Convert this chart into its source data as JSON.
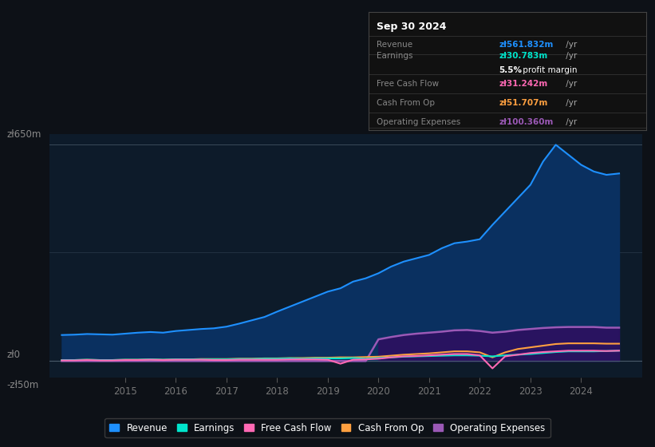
{
  "bg_color": "#0d1117",
  "plot_bg_color": "#0d1b2a",
  "title_date": "Sep 30 2024",
  "years": [
    2013.75,
    2014.0,
    2014.25,
    2014.5,
    2014.75,
    2015.0,
    2015.25,
    2015.5,
    2015.75,
    2016.0,
    2016.25,
    2016.5,
    2016.75,
    2017.0,
    2017.25,
    2017.5,
    2017.75,
    2018.0,
    2018.25,
    2018.5,
    2018.75,
    2019.0,
    2019.25,
    2019.5,
    2019.75,
    2020.0,
    2020.25,
    2020.5,
    2020.75,
    2021.0,
    2021.25,
    2021.5,
    2021.75,
    2022.0,
    2022.25,
    2022.5,
    2022.75,
    2023.0,
    2023.25,
    2023.5,
    2023.75,
    2024.0,
    2024.25,
    2024.5,
    2024.75
  ],
  "revenue": [
    78,
    79,
    81,
    80,
    79,
    82,
    85,
    87,
    85,
    90,
    93,
    96,
    98,
    103,
    112,
    122,
    132,
    148,
    163,
    178,
    193,
    208,
    218,
    238,
    248,
    263,
    283,
    298,
    308,
    318,
    338,
    353,
    358,
    365,
    408,
    448,
    488,
    528,
    598,
    648,
    618,
    588,
    568,
    558,
    562
  ],
  "earnings": [
    3,
    3,
    4,
    3,
    3,
    4,
    4,
    5,
    4,
    5,
    5,
    5,
    5,
    5,
    6,
    6,
    7,
    7,
    8,
    7,
    8,
    8,
    8,
    9,
    7,
    9,
    11,
    13,
    14,
    15,
    16,
    17,
    17,
    16,
    14,
    17,
    19,
    21,
    24,
    27,
    29,
    29,
    29,
    30,
    31
  ],
  "free_cash_flow": [
    2,
    2,
    3,
    2,
    2,
    3,
    3,
    4,
    3,
    4,
    4,
    4,
    3,
    3,
    4,
    4,
    4,
    4,
    5,
    5,
    5,
    4,
    -8,
    4,
    5,
    7,
    11,
    14,
    15,
    17,
    19,
    21,
    21,
    17,
    -22,
    14,
    19,
    24,
    27,
    29,
    31,
    31,
    31,
    30,
    31
  ],
  "cash_from_op": [
    3,
    3,
    4,
    3,
    3,
    4,
    4,
    5,
    4,
    5,
    5,
    6,
    6,
    6,
    7,
    7,
    8,
    8,
    9,
    9,
    10,
    10,
    11,
    11,
    12,
    13,
    16,
    19,
    21,
    23,
    26,
    29,
    29,
    26,
    11,
    26,
    36,
    41,
    46,
    51,
    53,
    53,
    53,
    52,
    52
  ],
  "operating_expenses": [
    0,
    0,
    0,
    0,
    0,
    0,
    0,
    0,
    0,
    0,
    0,
    0,
    0,
    0,
    0,
    0,
    0,
    0,
    0,
    0,
    0,
    0,
    0,
    0,
    0,
    65,
    72,
    78,
    82,
    85,
    88,
    92,
    93,
    90,
    85,
    88,
    93,
    96,
    99,
    101,
    102,
    102,
    102,
    100,
    100
  ],
  "ylim": [
    -50,
    680
  ],
  "xlim": [
    2013.5,
    2025.2
  ],
  "xticks": [
    2015,
    2016,
    2017,
    2018,
    2019,
    2020,
    2021,
    2022,
    2023,
    2024
  ],
  "line_colors": {
    "revenue": "#1e90ff",
    "earnings": "#00e5cc",
    "free_cash_flow": "#ff69b4",
    "cash_from_op": "#ffa040",
    "operating_expenses": "#9b59b6"
  },
  "fill_revenue_color": "#0a3060",
  "fill_opex_color": "#2d1060",
  "legend_items": [
    {
      "label": "Revenue",
      "color": "#1e90ff"
    },
    {
      "label": "Earnings",
      "color": "#00e5cc"
    },
    {
      "label": "Free Cash Flow",
      "color": "#ff69b4"
    },
    {
      "label": "Cash From Op",
      "color": "#ffa040"
    },
    {
      "label": "Operating Expenses",
      "color": "#9b59b6"
    }
  ],
  "info_rows": [
    {
      "label": "Revenue",
      "value": "zł561.832m",
      "unit": " /yr",
      "color": "#1e90ff",
      "sub": null
    },
    {
      "label": "Earnings",
      "value": "zł30.783m",
      "unit": " /yr",
      "color": "#00e5cc",
      "sub": "5.5% profit margin"
    },
    {
      "label": "Free Cash Flow",
      "value": "zł31.242m",
      "unit": " /yr",
      "color": "#ff69b4",
      "sub": null
    },
    {
      "label": "Cash From Op",
      "value": "zł51.707m",
      "unit": " /yr",
      "color": "#ffa040",
      "sub": null
    },
    {
      "label": "Operating Expenses",
      "value": "zł100.360m",
      "unit": " /yr",
      "color": "#9b59b6",
      "sub": null
    }
  ]
}
